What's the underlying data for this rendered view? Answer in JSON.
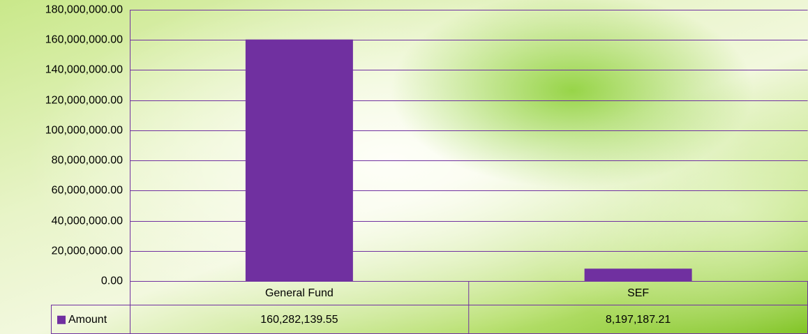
{
  "chart_data": {
    "type": "bar",
    "categories": [
      "General Fund",
      "SEF"
    ],
    "series": [
      {
        "name": "Amount",
        "color": "#7030a0",
        "values": [
          160282139.55,
          8197187.21
        ],
        "value_labels": [
          "160,282,139.55",
          "8,197,187.21"
        ]
      }
    ],
    "ylim": [
      0,
      180000000
    ],
    "yticks": [
      {
        "value": 0,
        "label": "0.00"
      },
      {
        "value": 20000000,
        "label": "20,000,000.00"
      },
      {
        "value": 40000000,
        "label": "40,000,000.00"
      },
      {
        "value": 60000000,
        "label": "60,000,000.00"
      },
      {
        "value": 80000000,
        "label": "80,000,000.00"
      },
      {
        "value": 100000000,
        "label": "100,000,000.00"
      },
      {
        "value": 120000000,
        "label": "120,000,000.00"
      },
      {
        "value": 140000000,
        "label": "140,000,000.00"
      },
      {
        "value": 160000000,
        "label": "160,000,000.00"
      },
      {
        "value": 180000000,
        "label": "180,000,000.00"
      }
    ],
    "grid": true,
    "data_table": true
  }
}
